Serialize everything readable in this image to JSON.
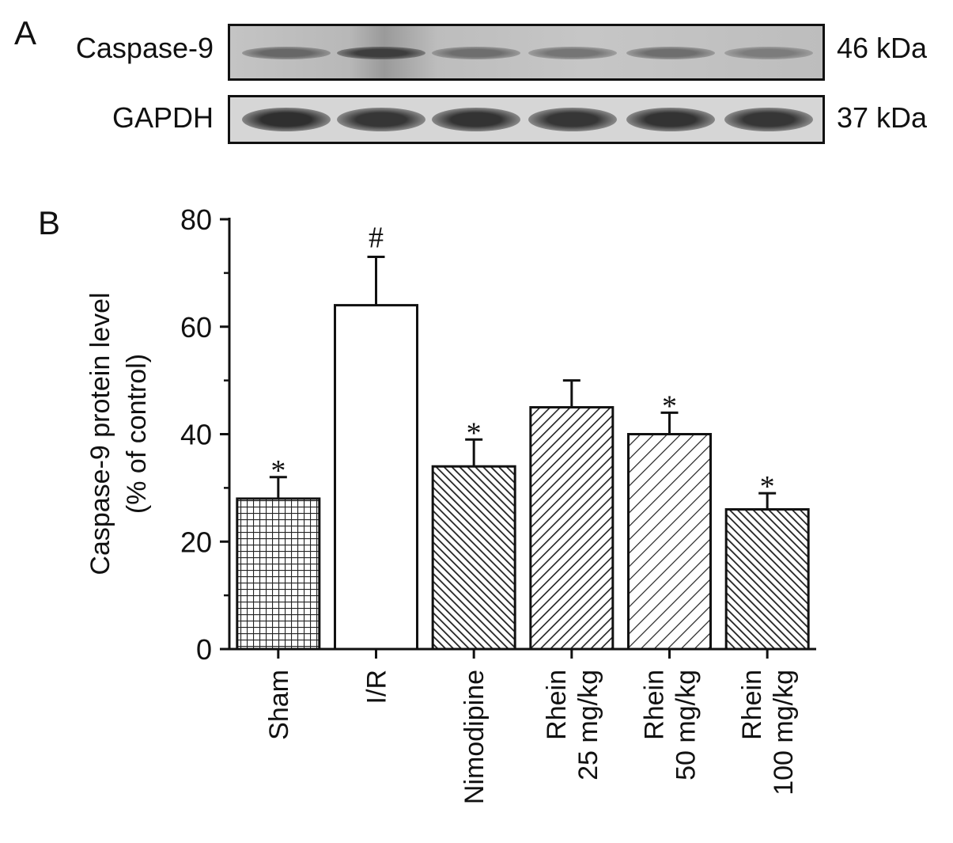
{
  "panels": {
    "a": "A",
    "b": "B"
  },
  "western_blot": {
    "rows": [
      {
        "protein": "Caspase-9",
        "size": "46 kDa",
        "band_intensity": [
          0.55,
          0.85,
          0.5,
          0.45,
          0.5,
          0.4
        ]
      },
      {
        "protein": "GAPDH",
        "size": "37 kDa",
        "band_intensity": [
          0.95,
          0.9,
          0.92,
          0.9,
          0.92,
          0.9
        ]
      }
    ]
  },
  "chart_data": {
    "type": "bar",
    "categories": [
      {
        "lines": [
          "Sham"
        ]
      },
      {
        "lines": [
          "I/R"
        ]
      },
      {
        "lines": [
          "Nimodipine"
        ]
      },
      {
        "lines": [
          "Rhein",
          "25 mg/kg"
        ]
      },
      {
        "lines": [
          "Rhein",
          "50 mg/kg"
        ]
      },
      {
        "lines": [
          "Rhein",
          "100 mg/kg"
        ]
      }
    ],
    "values": [
      28,
      64,
      34,
      45,
      40,
      26
    ],
    "errors": [
      4,
      9,
      5,
      5,
      4,
      3
    ],
    "annotations": [
      "*",
      "#",
      "*",
      "",
      "*",
      "*"
    ],
    "patterns": [
      "grid",
      "none",
      "dense-back-diagonal",
      "diagonal",
      "diagonal-light",
      "dense-back-diagonal"
    ],
    "ylabel_lines": [
      "Caspase-9 protein level",
      "(% of control)"
    ],
    "xlabel": "",
    "ylim": [
      0,
      80
    ],
    "yticks": [
      0,
      20,
      40,
      60,
      80
    ],
    "grid": false,
    "colors": {
      "bar_edge": "#111111",
      "pattern": "#222222",
      "fill": "#ffffff"
    }
  }
}
